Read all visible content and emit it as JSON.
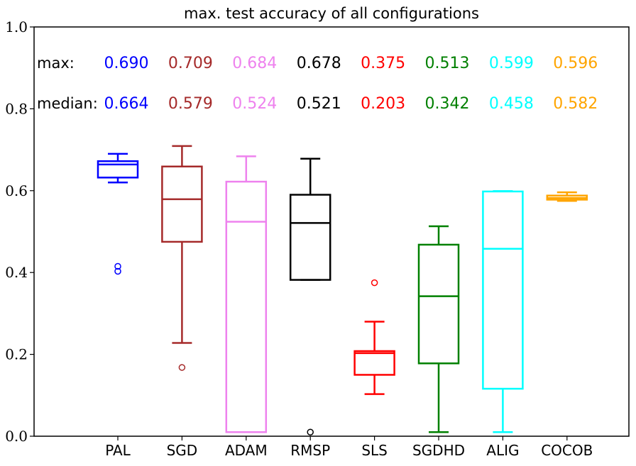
{
  "chart_data": {
    "type": "box",
    "title": "max. test accuracy of all configurations",
    "xlabel": "",
    "ylabel": "",
    "ylim": [
      0.0,
      1.0
    ],
    "yticks": [
      "0.0",
      "0.2",
      "0.4",
      "0.6",
      "0.8",
      "1.0"
    ],
    "grid": false,
    "annotations": {
      "max_label": "max:",
      "median_label": "median:"
    },
    "series": [
      {
        "name": "PAL",
        "color": "#0000ff",
        "whisker_low": 0.62,
        "q1": 0.632,
        "median": 0.664,
        "q3": 0.672,
        "whisker_high": 0.69,
        "outliers": [
          0.403,
          0.415
        ],
        "max_text": "0.690",
        "median_text": "0.664"
      },
      {
        "name": "SGD",
        "color": "#a52a2a",
        "whisker_low": 0.228,
        "q1": 0.475,
        "median": 0.579,
        "q3": 0.659,
        "whisker_high": 0.709,
        "outliers": [
          0.168
        ],
        "max_text": "0.709",
        "median_text": "0.579"
      },
      {
        "name": "ADAM",
        "color": "#ee82ee",
        "whisker_low": 0.01,
        "q1": 0.01,
        "median": 0.524,
        "q3": 0.622,
        "whisker_high": 0.684,
        "outliers": [],
        "max_text": "0.684",
        "median_text": "0.524"
      },
      {
        "name": "RMSP",
        "color": "#000000",
        "whisker_low": 0.382,
        "q1": 0.382,
        "median": 0.521,
        "q3": 0.59,
        "whisker_high": 0.678,
        "outliers": [
          0.01
        ],
        "max_text": "0.678",
        "median_text": "0.521"
      },
      {
        "name": "SLS",
        "color": "#ff0000",
        "whisker_low": 0.103,
        "q1": 0.15,
        "median": 0.203,
        "q3": 0.208,
        "whisker_high": 0.28,
        "outliers": [
          0.375
        ],
        "max_text": "0.375",
        "median_text": "0.203"
      },
      {
        "name": "SGDHD",
        "color": "#008000",
        "whisker_low": 0.01,
        "q1": 0.178,
        "median": 0.342,
        "q3": 0.468,
        "whisker_high": 0.513,
        "outliers": [],
        "max_text": "0.513",
        "median_text": "0.342"
      },
      {
        "name": "ALIG",
        "color": "#00ffff",
        "whisker_low": 0.01,
        "q1": 0.116,
        "median": 0.458,
        "q3": 0.598,
        "whisker_high": 0.599,
        "outliers": [],
        "max_text": "0.599",
        "median_text": "0.458"
      },
      {
        "name": "COCOB",
        "color": "#ffa500",
        "whisker_low": 0.575,
        "q1": 0.578,
        "median": 0.582,
        "q3": 0.588,
        "whisker_high": 0.596,
        "outliers": [],
        "max_text": "0.596",
        "median_text": "0.582"
      }
    ]
  }
}
